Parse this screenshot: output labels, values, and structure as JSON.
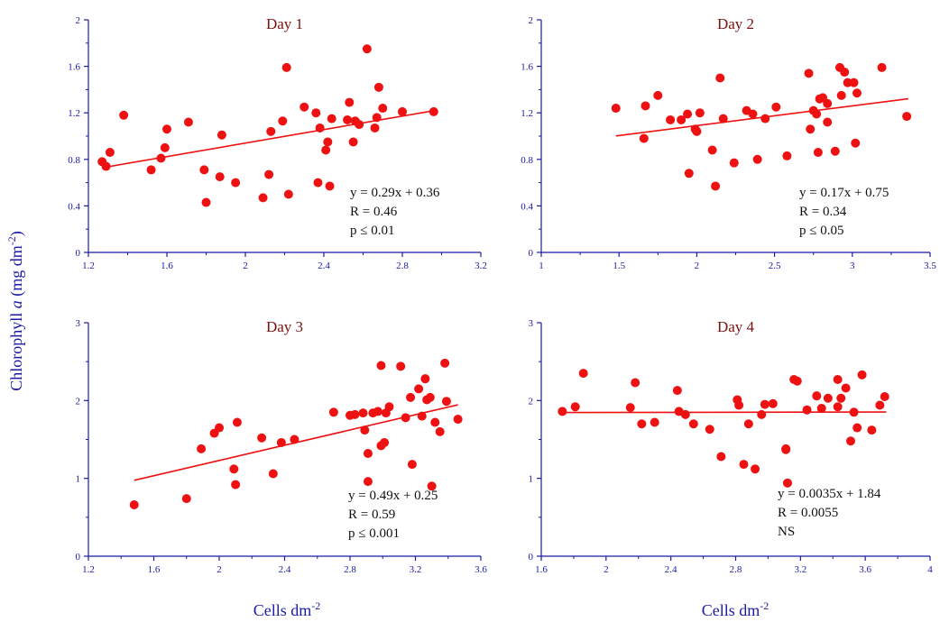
{
  "figure": {
    "ylabel": "Chlorophyll a (mg dm-2)",
    "ylabel_main": "Chlorophyll ",
    "ylabel_italic": "a",
    "ylabel_unit": " (mg dm",
    "ylabel_exp": "-2",
    "ylabel_close": ")",
    "xlabel": "Cells dm-2",
    "xlabel_main": "Cells dm",
    "xlabel_exp": "-2",
    "axis_color": "#1a1aa6",
    "title_color": "#7a1010",
    "point_color": "#ee1111",
    "line_color": "#ee1111"
  },
  "chart_data": [
    {
      "type": "scatter",
      "title": "Day 1",
      "xlim": [
        1.2,
        3.2
      ],
      "ylim": [
        0,
        2
      ],
      "xticks": [
        "1.2",
        "1.6",
        "2",
        "2.4",
        "2.8",
        "3.2"
      ],
      "yticks": [
        "0",
        "0.4",
        "0.8",
        "1.2",
        "1.6",
        "2"
      ],
      "fit": {
        "slope": 0.29,
        "intercept": 0.36,
        "x_range": [
          1.27,
          2.97
        ]
      },
      "annotations": [
        "y = 0.29x + 0.36",
        "R = 0.46",
        "p ≤ 0.01"
      ],
      "points": [
        [
          1.27,
          0.78
        ],
        [
          1.29,
          0.74
        ],
        [
          1.31,
          0.86
        ],
        [
          1.38,
          1.18
        ],
        [
          1.52,
          0.71
        ],
        [
          1.57,
          0.81
        ],
        [
          1.59,
          0.9
        ],
        [
          1.6,
          1.06
        ],
        [
          1.71,
          1.12
        ],
        [
          1.79,
          0.71
        ],
        [
          1.8,
          0.43
        ],
        [
          1.87,
          0.65
        ],
        [
          1.88,
          1.01
        ],
        [
          1.95,
          0.6
        ],
        [
          2.09,
          0.47
        ],
        [
          2.12,
          0.67
        ],
        [
          2.13,
          1.04
        ],
        [
          2.19,
          1.13
        ],
        [
          2.21,
          1.59
        ],
        [
          2.22,
          0.5
        ],
        [
          2.3,
          1.25
        ],
        [
          2.36,
          1.2
        ],
        [
          2.37,
          0.6
        ],
        [
          2.38,
          1.07
        ],
        [
          2.41,
          0.88
        ],
        [
          2.42,
          0.95
        ],
        [
          2.43,
          0.57
        ],
        [
          2.44,
          1.15
        ],
        [
          2.52,
          1.14
        ],
        [
          2.53,
          1.29
        ],
        [
          2.55,
          0.95
        ],
        [
          2.56,
          1.13
        ],
        [
          2.58,
          1.1
        ],
        [
          2.62,
          1.75
        ],
        [
          2.66,
          1.07
        ],
        [
          2.67,
          1.16
        ],
        [
          2.68,
          1.42
        ],
        [
          2.7,
          1.24
        ],
        [
          2.8,
          1.21
        ],
        [
          2.96,
          1.21
        ]
      ]
    },
    {
      "type": "scatter",
      "title": "Day 2",
      "xlim": [
        1,
        3.5
      ],
      "ylim": [
        0,
        2
      ],
      "xticks": [
        "1",
        "1.5",
        "2",
        "2.5",
        "3",
        "3.5"
      ],
      "yticks": [
        "0",
        "0.4",
        "0.8",
        "1.2",
        "1.6",
        "2"
      ],
      "fit": {
        "slope": 0.17,
        "intercept": 0.75,
        "x_range": [
          1.48,
          3.36
        ]
      },
      "annotations": [
        "y = 0.17x + 0.75",
        "R = 0.34",
        "p ≤ 0.05"
      ],
      "points": [
        [
          1.48,
          1.24
        ],
        [
          1.66,
          0.98
        ],
        [
          1.67,
          1.26
        ],
        [
          1.75,
          1.35
        ],
        [
          1.83,
          1.14
        ],
        [
          1.9,
          1.14
        ],
        [
          1.94,
          1.19
        ],
        [
          1.95,
          0.68
        ],
        [
          1.99,
          1.06
        ],
        [
          2.0,
          1.04
        ],
        [
          2.02,
          1.2
        ],
        [
          2.1,
          0.88
        ],
        [
          2.12,
          0.57
        ],
        [
          2.15,
          1.5
        ],
        [
          2.17,
          1.15
        ],
        [
          2.24,
          0.77
        ],
        [
          2.32,
          1.22
        ],
        [
          2.36,
          1.19
        ],
        [
          2.39,
          0.8
        ],
        [
          2.44,
          1.15
        ],
        [
          2.51,
          1.25
        ],
        [
          2.58,
          0.83
        ],
        [
          2.72,
          1.54
        ],
        [
          2.73,
          1.06
        ],
        [
          2.75,
          1.22
        ],
        [
          2.77,
          1.19
        ],
        [
          2.78,
          0.86
        ],
        [
          2.79,
          1.32
        ],
        [
          2.81,
          1.33
        ],
        [
          2.84,
          1.28
        ],
        [
          2.84,
          1.12
        ],
        [
          2.89,
          0.87
        ],
        [
          2.92,
          1.59
        ],
        [
          2.93,
          1.35
        ],
        [
          2.95,
          1.55
        ],
        [
          2.97,
          1.46
        ],
        [
          3.01,
          1.46
        ],
        [
          3.02,
          0.94
        ],
        [
          3.03,
          1.37
        ],
        [
          3.19,
          1.59
        ],
        [
          3.35,
          1.17
        ]
      ]
    },
    {
      "type": "scatter",
      "title": "Day 3",
      "xlim": [
        1.2,
        3.6
      ],
      "ylim": [
        0,
        3
      ],
      "xticks": [
        "1.2",
        "1.6",
        "2",
        "2.4",
        "2.8",
        "3.2",
        "3.6"
      ],
      "yticks": [
        "0",
        "1",
        "2",
        "3"
      ],
      "fit": {
        "slope": 0.49,
        "intercept": 0.25,
        "x_range": [
          1.48,
          3.46
        ]
      },
      "annotations": [
        "y = 0.49x + 0.25",
        "R = 0.59",
        "p ≤ 0.001"
      ],
      "points": [
        [
          1.48,
          0.66
        ],
        [
          1.8,
          0.74
        ],
        [
          1.89,
          1.38
        ],
        [
          1.97,
          1.58
        ],
        [
          2.0,
          1.65
        ],
        [
          2.09,
          1.12
        ],
        [
          2.1,
          0.92
        ],
        [
          2.11,
          1.72
        ],
        [
          2.26,
          1.52
        ],
        [
          2.33,
          1.06
        ],
        [
          2.38,
          1.46
        ],
        [
          2.46,
          1.5
        ],
        [
          2.7,
          1.85
        ],
        [
          2.8,
          1.81
        ],
        [
          2.83,
          1.82
        ],
        [
          2.88,
          1.84
        ],
        [
          2.89,
          1.62
        ],
        [
          2.91,
          1.32
        ],
        [
          2.91,
          0.96
        ],
        [
          2.94,
          1.84
        ],
        [
          2.97,
          1.86
        ],
        [
          2.99,
          1.42
        ],
        [
          2.99,
          2.45
        ],
        [
          3.01,
          1.46
        ],
        [
          3.02,
          1.84
        ],
        [
          3.04,
          1.92
        ],
        [
          3.11,
          2.44
        ],
        [
          3.14,
          1.78
        ],
        [
          3.17,
          2.04
        ],
        [
          3.18,
          1.18
        ],
        [
          3.22,
          2.15
        ],
        [
          3.24,
          1.8
        ],
        [
          3.26,
          2.28
        ],
        [
          3.27,
          2.01
        ],
        [
          3.29,
          2.04
        ],
        [
          3.3,
          0.9
        ],
        [
          3.32,
          1.72
        ],
        [
          3.35,
          1.6
        ],
        [
          3.38,
          2.48
        ],
        [
          3.39,
          1.99
        ],
        [
          3.46,
          1.76
        ]
      ]
    },
    {
      "type": "scatter",
      "title": "Day 4",
      "xlim": [
        1.6,
        4
      ],
      "ylim": [
        0,
        3
      ],
      "xticks": [
        "1.6",
        "2",
        "2.4",
        "2.8",
        "3.2",
        "3.6",
        "4"
      ],
      "yticks": [
        "0",
        "1",
        "2",
        "3"
      ],
      "fit": {
        "slope": 0.0035,
        "intercept": 1.84,
        "x_range": [
          1.73,
          3.73
        ]
      },
      "annotations": [
        "y = 0.0035x + 1.84",
        "R = 0.0055",
        "NS"
      ],
      "points": [
        [
          1.73,
          1.86
        ],
        [
          1.81,
          1.92
        ],
        [
          1.86,
          2.35
        ],
        [
          2.15,
          1.91
        ],
        [
          2.18,
          2.23
        ],
        [
          2.22,
          1.7
        ],
        [
          2.3,
          1.72
        ],
        [
          2.44,
          2.13
        ],
        [
          2.45,
          1.86
        ],
        [
          2.49,
          1.82
        ],
        [
          2.54,
          1.7
        ],
        [
          2.64,
          1.63
        ],
        [
          2.71,
          1.28
        ],
        [
          2.81,
          2.01
        ],
        [
          2.82,
          1.94
        ],
        [
          2.85,
          1.18
        ],
        [
          2.88,
          1.7
        ],
        [
          2.92,
          1.12
        ],
        [
          2.96,
          1.82
        ],
        [
          2.98,
          1.95
        ],
        [
          3.03,
          1.96
        ],
        [
          3.11,
          1.38
        ],
        [
          3.11,
          1.37
        ],
        [
          3.12,
          0.94
        ],
        [
          3.16,
          2.27
        ],
        [
          3.18,
          2.25
        ],
        [
          3.24,
          1.88
        ],
        [
          3.3,
          2.06
        ],
        [
          3.33,
          1.9
        ],
        [
          3.37,
          2.03
        ],
        [
          3.43,
          1.92
        ],
        [
          3.43,
          2.27
        ],
        [
          3.45,
          2.03
        ],
        [
          3.48,
          2.16
        ],
        [
          3.51,
          1.48
        ],
        [
          3.53,
          1.85
        ],
        [
          3.55,
          1.65
        ],
        [
          3.58,
          2.33
        ],
        [
          3.64,
          1.62
        ],
        [
          3.69,
          1.94
        ],
        [
          3.72,
          2.05
        ]
      ]
    }
  ]
}
